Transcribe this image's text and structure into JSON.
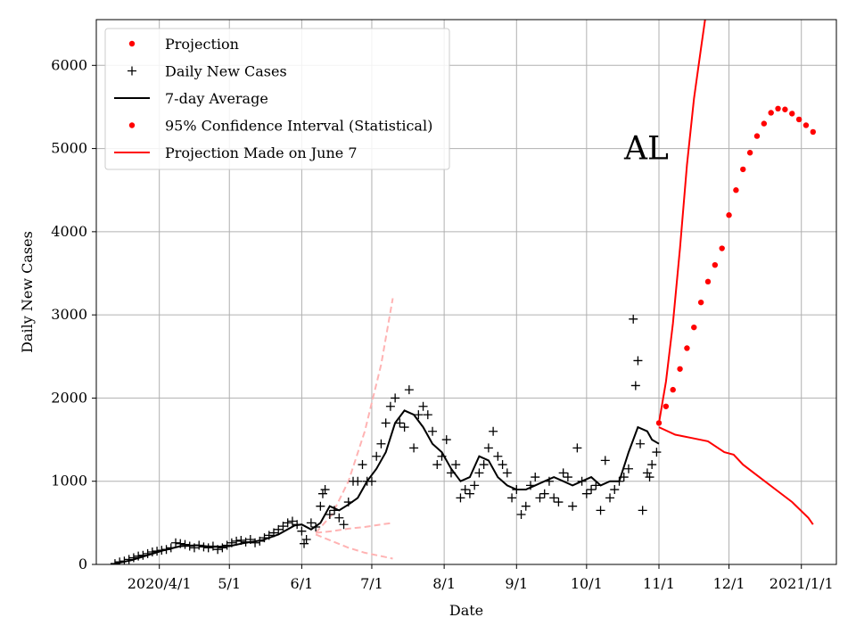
{
  "chart_data": {
    "type": "line",
    "xlabel": "Date",
    "ylabel": "Daily New Cases",
    "annotation": "AL",
    "x_axis": "date",
    "xlim": [
      "2020-03-05",
      "2021-01-16"
    ],
    "ylim": [
      0,
      6550
    ],
    "grid": true,
    "legend_position": "top-left",
    "x_ticks": [
      {
        "date": "2020-04-01",
        "label": "2020/4/1"
      },
      {
        "date": "2020-05-01",
        "label": "5/1"
      },
      {
        "date": "2020-06-01",
        "label": "6/1"
      },
      {
        "date": "2020-07-01",
        "label": "7/1"
      },
      {
        "date": "2020-08-01",
        "label": "8/1"
      },
      {
        "date": "2020-09-01",
        "label": "9/1"
      },
      {
        "date": "2020-10-01",
        "label": "10/1"
      },
      {
        "date": "2020-11-01",
        "label": "11/1"
      },
      {
        "date": "2020-12-01",
        "label": "12/1"
      },
      {
        "date": "2021-01-01",
        "label": "2021/1/1"
      }
    ],
    "y_ticks": [
      0,
      1000,
      2000,
      3000,
      4000,
      5000,
      6000
    ],
    "colors": {
      "projection": "#ff0000",
      "daily": "#000000",
      "average": "#000000",
      "confidence": "#ff0000",
      "june_projection": "#ffb3b3"
    },
    "legend": [
      {
        "label": "Projection",
        "marker": "dot",
        "color": "#ff0000"
      },
      {
        "label": "Daily New Cases",
        "marker": "plus",
        "color": "#000000"
      },
      {
        "label": "7-day Average",
        "marker": "line",
        "color": "#000000"
      },
      {
        "label": "95% Confidence Interval (Statistical)",
        "marker": "dot",
        "color": "#ff0000"
      },
      {
        "label": "Projection Made on June 7",
        "marker": "line",
        "color": "#ff0000"
      }
    ],
    "series": [
      {
        "name": "Daily New Cases",
        "style": "plus",
        "x": [
          "2020-03-13",
          "2020-03-15",
          "2020-03-17",
          "2020-03-19",
          "2020-03-21",
          "2020-03-23",
          "2020-03-25",
          "2020-03-27",
          "2020-03-29",
          "2020-03-31",
          "2020-04-02",
          "2020-04-04",
          "2020-04-06",
          "2020-04-08",
          "2020-04-10",
          "2020-04-12",
          "2020-04-14",
          "2020-04-16",
          "2020-04-18",
          "2020-04-20",
          "2020-04-22",
          "2020-04-24",
          "2020-04-26",
          "2020-04-28",
          "2020-04-30",
          "2020-05-02",
          "2020-05-04",
          "2020-05-06",
          "2020-05-08",
          "2020-05-10",
          "2020-05-12",
          "2020-05-14",
          "2020-05-16",
          "2020-05-18",
          "2020-05-20",
          "2020-05-22",
          "2020-05-24",
          "2020-05-26",
          "2020-05-28",
          "2020-05-30",
          "2020-06-01",
          "2020-06-02",
          "2020-06-03",
          "2020-06-05",
          "2020-06-07",
          "2020-06-09",
          "2020-06-10",
          "2020-06-11",
          "2020-06-13",
          "2020-06-15",
          "2020-06-17",
          "2020-06-19",
          "2020-06-21",
          "2020-06-23",
          "2020-06-25",
          "2020-06-27",
          "2020-06-29",
          "2020-07-01",
          "2020-07-03",
          "2020-07-05",
          "2020-07-07",
          "2020-07-09",
          "2020-07-11",
          "2020-07-13",
          "2020-07-15",
          "2020-07-17",
          "2020-07-19",
          "2020-07-21",
          "2020-07-23",
          "2020-07-25",
          "2020-07-27",
          "2020-07-29",
          "2020-07-31",
          "2020-08-02",
          "2020-08-04",
          "2020-08-06",
          "2020-08-08",
          "2020-08-10",
          "2020-08-12",
          "2020-08-14",
          "2020-08-16",
          "2020-08-18",
          "2020-08-20",
          "2020-08-22",
          "2020-08-24",
          "2020-08-26",
          "2020-08-28",
          "2020-08-30",
          "2020-09-01",
          "2020-09-03",
          "2020-09-05",
          "2020-09-07",
          "2020-09-09",
          "2020-09-11",
          "2020-09-13",
          "2020-09-15",
          "2020-09-17",
          "2020-09-19",
          "2020-09-21",
          "2020-09-23",
          "2020-09-25",
          "2020-09-27",
          "2020-09-29",
          "2020-10-01",
          "2020-10-03",
          "2020-10-05",
          "2020-10-07",
          "2020-10-09",
          "2020-10-11",
          "2020-10-13",
          "2020-10-15",
          "2020-10-17",
          "2020-10-19",
          "2020-10-21",
          "2020-10-22",
          "2020-10-23",
          "2020-10-24",
          "2020-10-25",
          "2020-10-27",
          "2020-10-28",
          "2020-10-29",
          "2020-10-31"
        ],
        "y": [
          10,
          30,
          40,
          60,
          80,
          100,
          110,
          130,
          150,
          160,
          170,
          180,
          200,
          260,
          250,
          240,
          220,
          200,
          230,
          210,
          200,
          220,
          180,
          200,
          230,
          260,
          280,
          290,
          270,
          300,
          260,
          280,
          320,
          350,
          380,
          420,
          460,
          500,
          520,
          480,
          400,
          250,
          300,
          500,
          450,
          700,
          850,
          900,
          600,
          650,
          560,
          480,
          750,
          1000,
          1000,
          1200,
          1000,
          1000,
          1300,
          1450,
          1700,
          1900,
          2000,
          1700,
          1650,
          2100,
          1400,
          1800,
          1900,
          1800,
          1600,
          1200,
          1300,
          1500,
          1100,
          1200,
          800,
          900,
          850,
          950,
          1100,
          1200,
          1400,
          1600,
          1300,
          1200,
          1100,
          800,
          900,
          600,
          700,
          950,
          1050,
          800,
          850,
          1000,
          800,
          750,
          1100,
          1050,
          700,
          1400,
          1000,
          850,
          900,
          950,
          650,
          1250,
          800,
          900,
          1000,
          1050,
          1150,
          2950,
          2150,
          2450,
          1450,
          650,
          1100,
          1050,
          1200,
          1350
        ]
      },
      {
        "name": "7-day Average",
        "style": "line",
        "x": [
          "2020-03-13",
          "2020-03-20",
          "2020-03-27",
          "2020-04-03",
          "2020-04-10",
          "2020-04-17",
          "2020-04-24",
          "2020-05-01",
          "2020-05-08",
          "2020-05-15",
          "2020-05-22",
          "2020-05-29",
          "2020-06-01",
          "2020-06-05",
          "2020-06-09",
          "2020-06-13",
          "2020-06-17",
          "2020-06-21",
          "2020-06-25",
          "2020-06-29",
          "2020-07-03",
          "2020-07-07",
          "2020-07-11",
          "2020-07-15",
          "2020-07-19",
          "2020-07-23",
          "2020-07-27",
          "2020-07-31",
          "2020-08-04",
          "2020-08-08",
          "2020-08-12",
          "2020-08-16",
          "2020-08-20",
          "2020-08-24",
          "2020-08-28",
          "2020-09-01",
          "2020-09-05",
          "2020-09-09",
          "2020-09-13",
          "2020-09-17",
          "2020-09-21",
          "2020-09-25",
          "2020-09-29",
          "2020-10-03",
          "2020-10-07",
          "2020-10-11",
          "2020-10-15",
          "2020-10-19",
          "2020-10-23",
          "2020-10-27",
          "2020-10-29",
          "2020-11-01"
        ],
        "y": [
          10,
          50,
          110,
          170,
          220,
          230,
          210,
          220,
          260,
          290,
          360,
          470,
          480,
          420,
          500,
          700,
          650,
          720,
          800,
          1000,
          1150,
          1350,
          1700,
          1850,
          1800,
          1650,
          1450,
          1350,
          1150,
          1000,
          1050,
          1300,
          1250,
          1050,
          950,
          900,
          900,
          950,
          1000,
          1050,
          1000,
          950,
          1000,
          1050,
          950,
          1000,
          1000,
          1350,
          1650,
          1600,
          1500,
          1450
        ]
      },
      {
        "name": "Projection",
        "style": "dot",
        "x": [
          "2020-11-01",
          "2020-11-04",
          "2020-11-07",
          "2020-11-10",
          "2020-11-13",
          "2020-11-16",
          "2020-11-19",
          "2020-11-22",
          "2020-11-25",
          "2020-11-28",
          "2020-12-01",
          "2020-12-04",
          "2020-12-07",
          "2020-12-10",
          "2020-12-13",
          "2020-12-16",
          "2020-12-19",
          "2020-12-22",
          "2020-12-25",
          "2020-12-28",
          "2020-12-31",
          "2021-01-03",
          "2021-01-06"
        ],
        "y": [
          1700,
          1900,
          2100,
          2350,
          2600,
          2850,
          3150,
          3400,
          3600,
          3800,
          4200,
          4500,
          4750,
          4950,
          5150,
          5300,
          5430,
          5480,
          5470,
          5420,
          5350,
          5280,
          5200
        ]
      },
      {
        "name": "95% Confidence Interval (Statistical)",
        "style": "line",
        "x": [
          "2020-11-01",
          "2020-11-04",
          "2020-11-07",
          "2020-11-10",
          "2020-11-13",
          "2020-11-16",
          "2020-11-19",
          "2020-11-21"
        ],
        "y": [
          1700,
          2200,
          2900,
          3800,
          4800,
          5600,
          6200,
          6600
        ]
      },
      {
        "name": "95% Confidence Interval (Statistical)",
        "style": "line",
        "x": [
          "2020-11-01",
          "2020-11-08",
          "2020-11-15",
          "2020-11-22",
          "2020-11-29",
          "2020-12-03",
          "2020-12-07",
          "2020-12-14",
          "2020-12-21",
          "2020-12-28",
          "2021-01-04",
          "2021-01-06"
        ],
        "y": [
          1650,
          1560,
          1520,
          1480,
          1350,
          1320,
          1200,
          1050,
          900,
          750,
          560,
          480
        ]
      },
      {
        "name": "Projection Made on June 7",
        "style": "dashed",
        "x": [
          "2020-06-07",
          "2020-06-14",
          "2020-06-21",
          "2020-06-28",
          "2020-07-05",
          "2020-07-10"
        ],
        "y": [
          380,
          600,
          1000,
          1600,
          2400,
          3200
        ]
      },
      {
        "name": "Projection Made on June 7",
        "style": "dashed",
        "x": [
          "2020-06-07",
          "2020-06-14",
          "2020-06-21",
          "2020-06-28",
          "2020-07-05",
          "2020-07-10"
        ],
        "y": [
          380,
          400,
          430,
          450,
          480,
          500
        ]
      },
      {
        "name": "Projection Made on June 7",
        "style": "dashed",
        "x": [
          "2020-06-07",
          "2020-06-14",
          "2020-06-21",
          "2020-06-28",
          "2020-07-05",
          "2020-07-10"
        ],
        "y": [
          360,
          280,
          200,
          140,
          100,
          70
        ]
      }
    ]
  }
}
